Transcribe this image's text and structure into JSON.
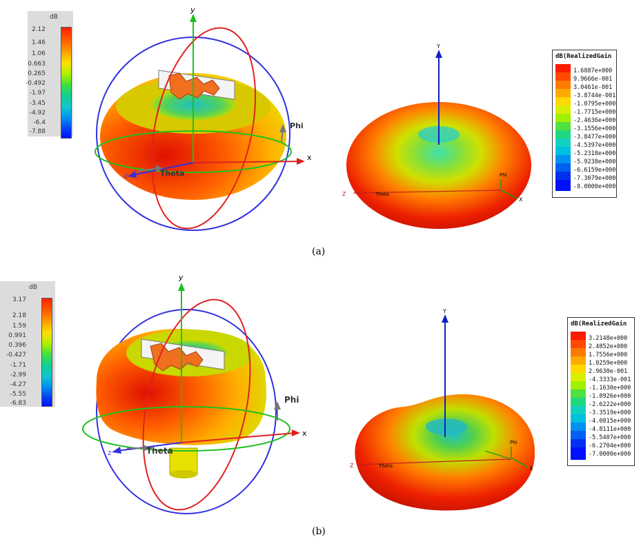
{
  "panel_a": {
    "caption": "(a)",
    "colorbar": {
      "unit": "dB",
      "ticks": [
        "2.12",
        "1.46",
        "1.06",
        "0.663",
        "0.265",
        "-0.492",
        "-1.97",
        "-3.45",
        "-4.92",
        "-6.4",
        "-7.88"
      ]
    },
    "axes_left": {
      "y": "y",
      "x": "x",
      "z": "z",
      "theta": "Theta",
      "phi": "Phi"
    },
    "legend": {
      "title": "dB(RealizedGain",
      "entries": [
        "1.6887e+000",
        "9.9666e-001",
        "3.0461e-001",
        "-3.8744e-001",
        "-1.0795e+000",
        "-1.7715e+000",
        "-2.4636e+000",
        "-3.1556e+000",
        "-3.8477e+000",
        "-4.5397e+000",
        "-5.2318e+000",
        "-5.9238e+000",
        "-6.6159e+000",
        "-7.3079e+000",
        "-8.0000e+000"
      ]
    },
    "axes_right": {
      "y": "Y",
      "x": "X",
      "z": "Z",
      "theta": "Theta",
      "phi": "Phi"
    }
  },
  "panel_b": {
    "caption": "(b)",
    "colorbar": {
      "unit": "dB",
      "ticks": [
        "3.17",
        "2.18",
        "1.59",
        "0.991",
        "0.396",
        "-0.427",
        "-1.71",
        "-2.99",
        "-4.27",
        "-5.55",
        "-6.83"
      ]
    },
    "axes_left": {
      "y": "y",
      "x": "x",
      "z": "z",
      "theta": "Theta",
      "phi": "Phi"
    },
    "legend": {
      "title": "dB(RealizedGain",
      "entries": [
        "3.2148e+000",
        "2.4852e+000",
        "1.7556e+000",
        "1.0259e+000",
        "2.9630e-001",
        "-4.3333e-001",
        "-1.1630e+000",
        "-1.8926e+000",
        "-2.6222e+000",
        "-3.3519e+000",
        "-4.0815e+000",
        "-4.8111e+000",
        "-5.5407e+000",
        "-6.2704e+000",
        "-7.0000e+000"
      ]
    },
    "axes_right": {
      "y": "Y",
      "x": "X",
      "z": "Z",
      "theta": "Theta",
      "phi": "Phi"
    }
  },
  "colors": {
    "legend_swatches": [
      "#ff1a00",
      "#ff4a00",
      "#ff7a00",
      "#ffaa00",
      "#ffd800",
      "#d8f000",
      "#a0f000",
      "#50e040",
      "#20d880",
      "#10d0c0",
      "#00c0e0",
      "#0090f0",
      "#0060f0",
      "#0030f0",
      "#0010ff"
    ]
  }
}
